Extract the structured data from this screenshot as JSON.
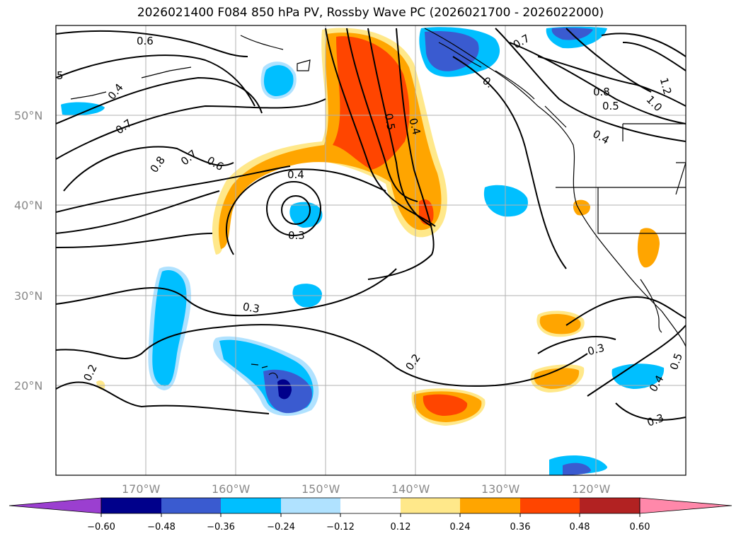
{
  "title": "2026021400 F084 850 hPa PV, Rossby Wave PC (2026021700 - 2026022000)",
  "lat_labels": [
    {
      "lat": 50,
      "text": "50°N"
    },
    {
      "lat": 40,
      "text": "40°N"
    },
    {
      "lat": 30,
      "text": "30°N"
    },
    {
      "lat": 20,
      "text": "20°N"
    }
  ],
  "lon_labels": [
    {
      "lon": -170,
      "text": "170°W"
    },
    {
      "lon": -160,
      "text": "160°W"
    },
    {
      "lon": -150,
      "text": "150°W"
    },
    {
      "lon": -140,
      "text": "140°W"
    },
    {
      "lon": -130,
      "text": "130°W"
    },
    {
      "lon": -120,
      "text": "120°W"
    }
  ],
  "map_extent": {
    "lon_min": -180,
    "lon_max": -110,
    "lat_min": 10,
    "lat_max": 60
  },
  "colorbar": {
    "ticks": [
      "−0.60",
      "−0.48",
      "−0.36",
      "−0.24",
      "−0.12",
      "0.12",
      "0.24",
      "0.36",
      "0.48",
      "0.60"
    ],
    "colors": [
      "#9b3fd0",
      "#00008b",
      "#3a5bd0",
      "#00bfff",
      "#b0e2ff",
      "#ffffff",
      "#ffe88a",
      "#ffa500",
      "#ff4500",
      "#b22222",
      "#ff88aa"
    ]
  },
  "contour_labels": [
    {
      "text": "0.6",
      "lon": -180,
      "lat": 59
    },
    {
      "text": "5",
      "lon": -180,
      "lat": 55
    },
    {
      "text": "0.4",
      "lon": -180,
      "lat": 53
    },
    {
      "text": "0.7",
      "lon": -180,
      "lat": 48
    },
    {
      "text": "0.8",
      "lon": -180,
      "lat": 43
    },
    {
      "text": "0.7",
      "lon": -180,
      "lat": 44
    },
    {
      "text": "0.6",
      "lon": -180,
      "lat": 43
    },
    {
      "text": "0.4",
      "lon": -180,
      "lat": 42
    },
    {
      "text": "0.3",
      "lon": -180,
      "lat": 37
    },
    {
      "text": "0.5",
      "lon": -180,
      "lat": 48
    },
    {
      "text": "0.4",
      "lon": -180,
      "lat": 47
    },
    {
      "text": "0.3",
      "lon": -180,
      "lat": 29
    },
    {
      "text": "0.2",
      "lon": -180,
      "lat": 22
    },
    {
      "text": "0.2",
      "lon": -180,
      "lat": 24
    },
    {
      "text": "0.3",
      "lon": -180,
      "lat": 24
    },
    {
      "text": "0.7",
      "lon": -180,
      "lat": 58
    },
    {
      "text": "0.8",
      "lon": -180,
      "lat": 53
    },
    {
      "text": "0.5",
      "lon": -180,
      "lat": 51
    },
    {
      "text": "0.4",
      "lon": -180,
      "lat": 48
    },
    {
      "text": "1.2",
      "lon": -180,
      "lat": 53
    },
    {
      "text": "1.0",
      "lon": -180,
      "lat": 51
    },
    {
      "text": "0.4",
      "lon": -180,
      "lat": 21
    },
    {
      "text": "0.5",
      "lon": -180,
      "lat": 23
    },
    {
      "text": "0.3",
      "lon": -180,
      "lat": 16
    },
    {
      "text": "0.",
      "lon": -180,
      "lat": 56
    }
  ]
}
